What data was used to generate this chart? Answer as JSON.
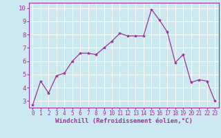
{
  "x": [
    0,
    1,
    2,
    3,
    4,
    5,
    6,
    7,
    8,
    9,
    10,
    11,
    12,
    13,
    14,
    15,
    16,
    17,
    18,
    19,
    20,
    21,
    22,
    23
  ],
  "y": [
    2.7,
    4.5,
    3.6,
    4.9,
    5.1,
    6.0,
    6.6,
    6.6,
    6.5,
    7.0,
    7.5,
    8.1,
    7.9,
    7.9,
    7.9,
    9.9,
    9.1,
    8.2,
    5.9,
    6.5,
    4.4,
    4.6,
    4.5,
    3.0
  ],
  "line_color": "#993399",
  "marker": "*",
  "marker_size": 3,
  "bg_color": "#cce8f0",
  "grid_color": "#ffffff",
  "xlabel": "Windchill (Refroidissement éolien,°C)",
  "ylim": [
    2.5,
    10.4
  ],
  "xlim": [
    -0.5,
    23.5
  ],
  "yticks": [
    3,
    4,
    5,
    6,
    7,
    8,
    9,
    10
  ],
  "xticks": [
    0,
    1,
    2,
    3,
    4,
    5,
    6,
    7,
    8,
    9,
    10,
    11,
    12,
    13,
    14,
    15,
    16,
    17,
    18,
    19,
    20,
    21,
    22,
    23
  ],
  "tick_color": "#993399",
  "label_color": "#993399",
  "spine_color": "#993399",
  "font_size_xlabel": 6.5,
  "font_size_ticks_x": 5.5,
  "font_size_ticks_y": 6.5,
  "line_width": 0.9
}
